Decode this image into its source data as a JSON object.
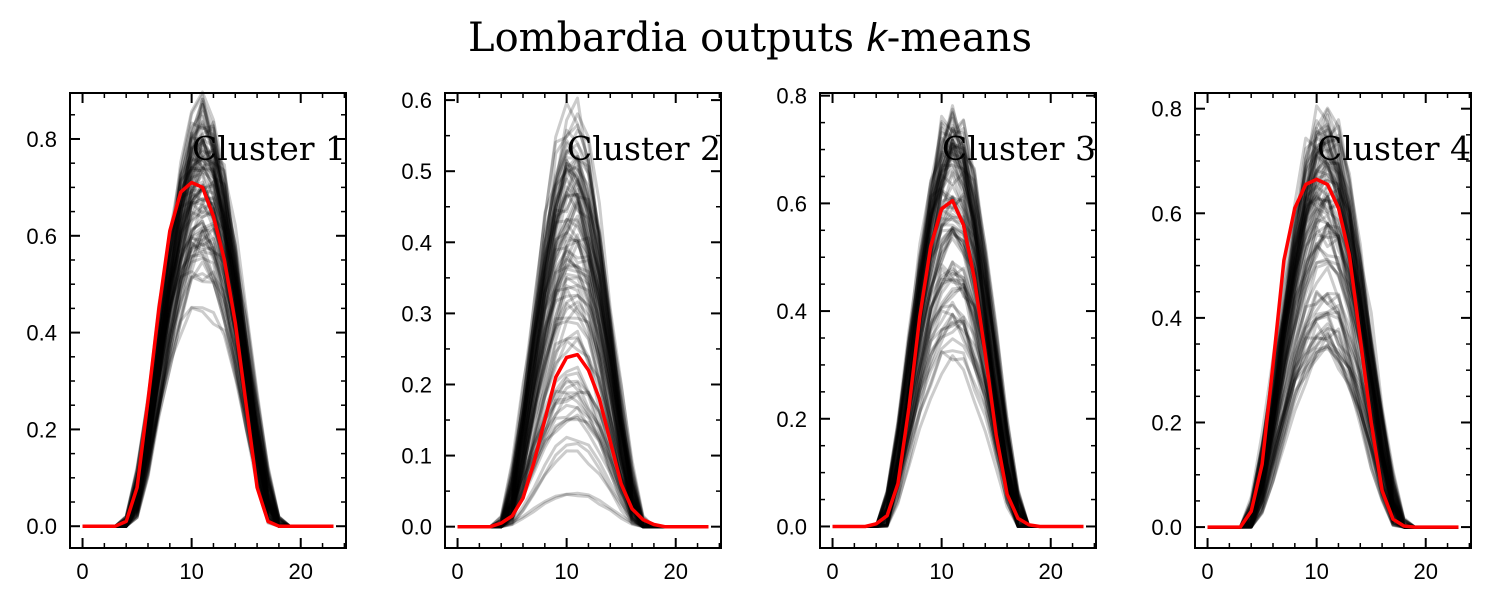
{
  "figure": {
    "title_main": "Lombardia outputs ",
    "title_k": "k",
    "title_rest": "-means"
  },
  "colors": {
    "mean_line": "#ff0000",
    "sample_line": "#000000"
  },
  "chart_data": [
    {
      "type": "line",
      "label": "Cluster 1",
      "x_range": [
        -1.15,
        24.15
      ],
      "xlim": [
        -1.15,
        24.15
      ],
      "ylim": [
        -0.045,
        0.895
      ],
      "xticks": [
        0,
        10,
        20
      ],
      "yticks": [
        0.0,
        0.2,
        0.4,
        0.6,
        0.8
      ],
      "ytick_labels": [
        "0.0",
        "0.2",
        "0.4",
        "0.6",
        "0.8"
      ],
      "xtick_labels": [
        "0",
        "10",
        "20"
      ],
      "mean_values": [
        0,
        0,
        0,
        0,
        0.01,
        0.08,
        0.26,
        0.45,
        0.61,
        0.69,
        0.71,
        0.7,
        0.64,
        0.55,
        0.42,
        0.25,
        0.08,
        0.01,
        0,
        0,
        0,
        0,
        0,
        0
      ],
      "envelope": {
        "peak_min": 0.45,
        "peak_max": 0.85,
        "start": 3.5,
        "end": 18.5
      },
      "n_samples": 90
    },
    {
      "type": "line",
      "label": "Cluster 2",
      "x_range": [
        -1.15,
        24.15
      ],
      "xlim": [
        -1.15,
        24.15
      ],
      "ylim": [
        -0.03,
        0.61
      ],
      "xticks": [
        0,
        10,
        20
      ],
      "yticks": [
        0.0,
        0.1,
        0.2,
        0.3,
        0.4,
        0.5,
        0.6
      ],
      "ytick_labels": [
        "0.0",
        "0.1",
        "0.2",
        "0.3",
        "0.4",
        "0.5",
        "0.6"
      ],
      "xtick_labels": [
        "0",
        "10",
        "20"
      ],
      "mean_values": [
        0,
        0,
        0,
        0,
        0.005,
        0.015,
        0.04,
        0.09,
        0.15,
        0.21,
        0.238,
        0.242,
        0.22,
        0.18,
        0.12,
        0.06,
        0.025,
        0.01,
        0.003,
        0,
        0,
        0,
        0,
        0
      ],
      "envelope": {
        "peak_min": 0.02,
        "peak_max": 0.58,
        "start": 3.5,
        "end": 17.5
      },
      "n_samples": 90
    },
    {
      "type": "line",
      "label": "Cluster 3",
      "x_range": [
        -1.15,
        24.15
      ],
      "xlim": [
        -1.15,
        24.15
      ],
      "ylim": [
        -0.04,
        0.805
      ],
      "xticks": [
        0,
        10,
        20
      ],
      "yticks": [
        0.0,
        0.2,
        0.4,
        0.6,
        0.8
      ],
      "ytick_labels": [
        "0.0",
        "0.2",
        "0.4",
        "0.6",
        "0.8"
      ],
      "xtick_labels": [
        "0",
        "10",
        "20"
      ],
      "mean_values": [
        0,
        0,
        0,
        0,
        0.005,
        0.02,
        0.08,
        0.22,
        0.39,
        0.52,
        0.59,
        0.605,
        0.56,
        0.46,
        0.32,
        0.17,
        0.06,
        0.015,
        0.003,
        0,
        0,
        0,
        0,
        0
      ],
      "envelope": {
        "peak_min": 0.3,
        "peak_max": 0.76,
        "start": 4.0,
        "end": 18.0
      },
      "n_samples": 90
    },
    {
      "type": "line",
      "label": "Cluster 4",
      "x_range": [
        -1.15,
        24.15
      ],
      "xlim": [
        -1.15,
        24.15
      ],
      "ylim": [
        -0.04,
        0.83
      ],
      "xticks": [
        0,
        10,
        20
      ],
      "yticks": [
        0.0,
        0.2,
        0.4,
        0.6,
        0.8
      ],
      "ytick_labels": [
        "0.0",
        "0.2",
        "0.4",
        "0.6",
        "0.8"
      ],
      "xtick_labels": [
        "0",
        "10",
        "20"
      ],
      "mean_values": [
        0,
        0,
        0,
        0,
        0.03,
        0.12,
        0.31,
        0.51,
        0.61,
        0.655,
        0.665,
        0.655,
        0.61,
        0.52,
        0.36,
        0.2,
        0.07,
        0.015,
        0.002,
        0,
        0,
        0,
        0,
        0
      ],
      "envelope": {
        "peak_min": 0.25,
        "peak_max": 0.79,
        "start": 3.0,
        "end": 18.5
      },
      "n_samples": 90
    }
  ]
}
